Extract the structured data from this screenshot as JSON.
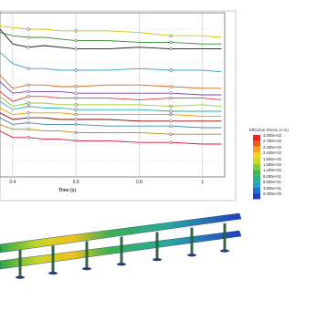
{
  "chart_data": {
    "type": "line",
    "xlabel": "Time (s)",
    "x_ticks": [
      "0.4",
      "0.6",
      "0.8",
      "1"
    ],
    "grid": true,
    "series_colors": [
      "#1a1a1a",
      "#c8c800",
      "#2e8b2e",
      "#3aa0c8",
      "#d2691e",
      "#7a3fb0",
      "#e03a3a",
      "#9acd32",
      "#20b2aa",
      "#ff8c00",
      "#8b0000",
      "#4682b4",
      "#b8860b",
      "#dc143c"
    ],
    "series": [
      {
        "x": [
          0.36,
          0.4,
          0.45,
          0.5,
          0.55,
          0.6,
          0.7,
          0.8,
          0.9,
          1.0,
          1.06
        ],
        "values": [
          9.0,
          8.1,
          7.9,
          8.0,
          7.9,
          7.8,
          7.8,
          7.9,
          7.8,
          7.8,
          7.8
        ]
      },
      {
        "x": [
          0.36,
          0.4,
          0.45,
          0.5,
          0.55,
          0.6,
          0.7,
          0.8,
          0.9,
          1.0,
          1.06
        ],
        "values": [
          9.2,
          9.1,
          9.0,
          9.0,
          8.9,
          8.9,
          8.9,
          8.8,
          8.6,
          8.6,
          8.5
        ]
      },
      {
        "x": [
          0.36,
          0.4,
          0.45,
          0.5,
          0.55,
          0.6,
          0.7,
          0.8,
          0.9,
          1.0,
          1.06
        ],
        "values": [
          8.8,
          8.6,
          8.5,
          8.5,
          8.4,
          8.3,
          8.3,
          8.2,
          8.2,
          8.1,
          8.1
        ]
      },
      {
        "x": [
          0.36,
          0.4,
          0.45,
          0.5,
          0.55,
          0.6,
          0.7,
          0.8,
          0.9,
          1.0,
          1.06
        ],
        "values": [
          7.6,
          6.9,
          6.6,
          6.6,
          6.5,
          6.5,
          6.5,
          6.6,
          6.5,
          6.5,
          6.4
        ]
      },
      {
        "x": [
          0.36,
          0.4,
          0.45,
          0.5,
          0.55,
          0.6,
          0.7,
          0.8,
          0.9,
          1.0,
          1.06
        ],
        "values": [
          6.2,
          5.4,
          5.6,
          5.6,
          5.5,
          5.5,
          5.6,
          5.6,
          5.5,
          5.4,
          5.4
        ]
      },
      {
        "x": [
          0.36,
          0.4,
          0.45,
          0.5,
          0.55,
          0.6,
          0.7,
          0.8,
          0.9,
          1.0,
          1.06
        ],
        "values": [
          5.8,
          5.1,
          5.2,
          5.2,
          5.2,
          5.1,
          5.1,
          5.1,
          5.1,
          5.0,
          5.0
        ]
      },
      {
        "x": [
          0.36,
          0.4,
          0.45,
          0.5,
          0.55,
          0.6,
          0.7,
          0.8,
          0.9,
          1.0,
          1.06
        ],
        "values": [
          5.2,
          4.6,
          4.9,
          4.9,
          4.8,
          4.8,
          4.8,
          4.7,
          4.8,
          4.8,
          4.7
        ]
      },
      {
        "x": [
          0.36,
          0.4,
          0.45,
          0.5,
          0.55,
          0.6,
          0.7,
          0.8,
          0.9,
          1.0,
          1.06
        ],
        "values": [
          4.9,
          4.3,
          4.5,
          4.5,
          4.4,
          4.4,
          4.4,
          4.4,
          4.3,
          4.4,
          4.3
        ]
      },
      {
        "x": [
          0.36,
          0.4,
          0.45,
          0.5,
          0.55,
          0.6,
          0.7,
          0.8,
          0.9,
          1.0,
          1.06
        ],
        "values": [
          4.6,
          4.1,
          4.3,
          4.2,
          4.2,
          4.1,
          4.1,
          4.1,
          4.0,
          4.0,
          4.0
        ]
      },
      {
        "x": [
          0.36,
          0.4,
          0.45,
          0.5,
          0.55,
          0.6,
          0.7,
          0.8,
          0.9,
          1.0,
          1.06
        ],
        "values": [
          4.2,
          3.8,
          3.9,
          3.9,
          3.9,
          3.8,
          3.8,
          3.8,
          3.8,
          3.7,
          3.7
        ]
      },
      {
        "x": [
          0.36,
          0.4,
          0.45,
          0.5,
          0.55,
          0.6,
          0.7,
          0.8,
          0.9,
          1.0,
          1.06
        ],
        "values": [
          3.9,
          3.5,
          3.6,
          3.6,
          3.5,
          3.5,
          3.5,
          3.4,
          3.4,
          3.4,
          3.4
        ]
      },
      {
        "x": [
          0.36,
          0.4,
          0.45,
          0.5,
          0.55,
          0.6,
          0.7,
          0.8,
          0.9,
          1.0,
          1.06
        ],
        "values": [
          3.6,
          3.2,
          3.3,
          3.2,
          3.2,
          3.2,
          3.1,
          3.1,
          3.1,
          3.0,
          3.0
        ]
      },
      {
        "x": [
          0.36,
          0.4,
          0.45,
          0.5,
          0.55,
          0.6,
          0.7,
          0.8,
          0.9,
          1.0,
          1.06
        ],
        "values": [
          3.2,
          2.9,
          2.9,
          2.8,
          2.8,
          2.7,
          2.7,
          2.7,
          2.6,
          2.6,
          2.6
        ]
      },
      {
        "x": [
          0.36,
          0.4,
          0.45,
          0.5,
          0.55,
          0.6,
          0.7,
          0.8,
          0.9,
          1.0,
          1.06
        ],
        "values": [
          2.8,
          2.4,
          2.4,
          2.3,
          2.3,
          2.2,
          2.2,
          2.1,
          2.1,
          2.0,
          2.0
        ]
      }
    ],
    "xlim": [
      0.36,
      1.07
    ],
    "ylim": [
      0,
      10
    ]
  },
  "legend": {
    "title": "Effective Stress (v-m)",
    "labels": [
      "3.000e+02",
      "2.700e+02",
      "2.400e+02",
      "2.100e+02",
      "1.800e+02",
      "1.500e+02",
      "1.200e+02",
      "9.000e+01",
      "6.000e+01",
      "3.000e+01",
      "0.000e+00"
    ],
    "colors": [
      "#e8261f",
      "#f05a1e",
      "#f7a21b",
      "#f6d21a",
      "#c8dd2a",
      "#7fcc3a",
      "#3fb94a",
      "#2ab08a",
      "#21a6c2",
      "#1f6fd0",
      "#1d3fbf"
    ]
  }
}
